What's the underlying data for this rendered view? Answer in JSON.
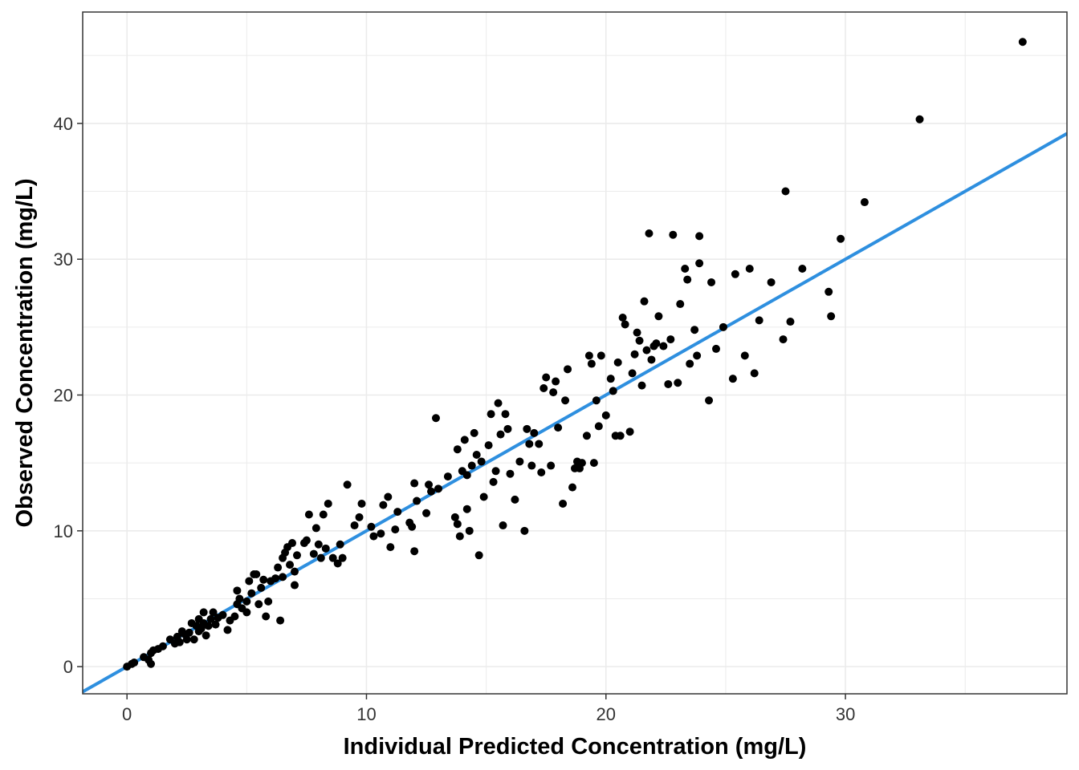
{
  "chart_data": {
    "type": "scatter",
    "title": "",
    "xlabel": "Individual Predicted Concentration (mg/L)",
    "ylabel": "Observed Concentration (mg/L)",
    "xlim": [
      -1.85,
      39.25
    ],
    "ylim": [
      -2.0,
      48.2
    ],
    "x_ticks": [
      0,
      10,
      20,
      30
    ],
    "x_tick_labels": [
      "0",
      "10",
      "20",
      "30"
    ],
    "y_ticks": [
      0,
      10,
      20,
      30,
      40
    ],
    "y_tick_labels": [
      "0",
      "10",
      "20",
      "30",
      "40"
    ],
    "grid": true,
    "legend": "none",
    "colors": {
      "points": "#000000",
      "line": "#2e8fdf",
      "grid": "#ebebeb",
      "panel_border": "#333333"
    },
    "line_of_identity": {
      "slope": 1.0,
      "intercept": 0.0
    },
    "points": [
      [
        0.0,
        0.0
      ],
      [
        0.2,
        0.2
      ],
      [
        0.3,
        0.3
      ],
      [
        0.7,
        0.7
      ],
      [
        0.9,
        0.5
      ],
      [
        1.0,
        1.0
      ],
      [
        1.0,
        0.2
      ],
      [
        1.1,
        1.2
      ],
      [
        1.3,
        1.3
      ],
      [
        1.5,
        1.5
      ],
      [
        1.8,
        2.0
      ],
      [
        2.0,
        1.7
      ],
      [
        2.1,
        2.2
      ],
      [
        2.2,
        1.8
      ],
      [
        2.3,
        2.6
      ],
      [
        2.4,
        2.4
      ],
      [
        2.5,
        2.0
      ],
      [
        2.6,
        2.5
      ],
      [
        2.7,
        3.2
      ],
      [
        2.8,
        2.0
      ],
      [
        2.9,
        3.0
      ],
      [
        3.0,
        3.5
      ],
      [
        3.0,
        2.6
      ],
      [
        3.1,
        2.8
      ],
      [
        3.2,
        4.0
      ],
      [
        3.2,
        3.2
      ],
      [
        3.3,
        2.3
      ],
      [
        3.4,
        3.0
      ],
      [
        3.5,
        3.5
      ],
      [
        3.6,
        4.0
      ],
      [
        3.7,
        3.1
      ],
      [
        3.8,
        3.6
      ],
      [
        4.0,
        3.8
      ],
      [
        4.2,
        2.7
      ],
      [
        4.3,
        3.4
      ],
      [
        4.5,
        3.7
      ],
      [
        4.6,
        4.6
      ],
      [
        4.6,
        5.6
      ],
      [
        4.7,
        5.0
      ],
      [
        4.8,
        4.3
      ],
      [
        5.0,
        4.8
      ],
      [
        5.0,
        4.0
      ],
      [
        5.1,
        6.3
      ],
      [
        5.2,
        5.4
      ],
      [
        5.3,
        6.8
      ],
      [
        5.4,
        6.8
      ],
      [
        5.5,
        4.6
      ],
      [
        5.6,
        5.8
      ],
      [
        5.7,
        6.4
      ],
      [
        5.8,
        3.7
      ],
      [
        5.9,
        4.8
      ],
      [
        6.0,
        6.3
      ],
      [
        6.2,
        6.5
      ],
      [
        6.3,
        7.3
      ],
      [
        6.4,
        3.4
      ],
      [
        6.5,
        6.6
      ],
      [
        6.5,
        8.0
      ],
      [
        6.6,
        8.4
      ],
      [
        6.7,
        8.8
      ],
      [
        6.8,
        7.5
      ],
      [
        6.9,
        9.1
      ],
      [
        7.0,
        6.0
      ],
      [
        7.0,
        7.0
      ],
      [
        7.1,
        8.2
      ],
      [
        7.4,
        9.1
      ],
      [
        7.5,
        9.3
      ],
      [
        7.6,
        11.2
      ],
      [
        7.8,
        8.3
      ],
      [
        7.9,
        10.2
      ],
      [
        8.0,
        9.0
      ],
      [
        8.1,
        8.0
      ],
      [
        8.2,
        11.2
      ],
      [
        8.3,
        8.7
      ],
      [
        8.4,
        12.0
      ],
      [
        8.6,
        8.0
      ],
      [
        8.8,
        7.6
      ],
      [
        8.9,
        9.0
      ],
      [
        9.0,
        8.0
      ],
      [
        9.2,
        13.4
      ],
      [
        9.5,
        10.4
      ],
      [
        9.7,
        11.0
      ],
      [
        9.8,
        12.0
      ],
      [
        10.2,
        10.3
      ],
      [
        10.3,
        9.6
      ],
      [
        10.6,
        9.8
      ],
      [
        10.7,
        11.9
      ],
      [
        10.9,
        12.5
      ],
      [
        11.0,
        8.8
      ],
      [
        11.2,
        10.1
      ],
      [
        11.3,
        11.4
      ],
      [
        11.8,
        10.6
      ],
      [
        11.9,
        10.3
      ],
      [
        12.0,
        8.5
      ],
      [
        12.0,
        13.5
      ],
      [
        12.1,
        12.2
      ],
      [
        12.5,
        11.3
      ],
      [
        12.6,
        13.4
      ],
      [
        12.7,
        12.9
      ],
      [
        12.9,
        18.3
      ],
      [
        13.0,
        13.1
      ],
      [
        13.4,
        14.0
      ],
      [
        13.7,
        11.0
      ],
      [
        13.8,
        16.0
      ],
      [
        13.8,
        10.5
      ],
      [
        13.9,
        9.6
      ],
      [
        14.0,
        14.4
      ],
      [
        14.1,
        16.7
      ],
      [
        14.2,
        11.6
      ],
      [
        14.2,
        14.1
      ],
      [
        14.3,
        10.0
      ],
      [
        14.4,
        14.8
      ],
      [
        14.5,
        17.2
      ],
      [
        14.6,
        15.6
      ],
      [
        14.7,
        8.2
      ],
      [
        14.8,
        15.1
      ],
      [
        14.9,
        12.5
      ],
      [
        15.1,
        16.3
      ],
      [
        15.2,
        18.6
      ],
      [
        15.3,
        13.6
      ],
      [
        15.4,
        14.4
      ],
      [
        15.5,
        19.4
      ],
      [
        15.6,
        17.1
      ],
      [
        15.7,
        10.4
      ],
      [
        15.8,
        18.6
      ],
      [
        15.9,
        17.5
      ],
      [
        16.0,
        14.2
      ],
      [
        16.2,
        12.3
      ],
      [
        16.4,
        15.1
      ],
      [
        16.6,
        10.0
      ],
      [
        16.7,
        17.5
      ],
      [
        16.8,
        16.4
      ],
      [
        16.9,
        14.8
      ],
      [
        17.0,
        17.2
      ],
      [
        17.2,
        16.4
      ],
      [
        17.3,
        14.3
      ],
      [
        17.4,
        20.5
      ],
      [
        17.5,
        21.3
      ],
      [
        17.7,
        14.8
      ],
      [
        17.8,
        20.2
      ],
      [
        17.9,
        21.0
      ],
      [
        18.0,
        17.6
      ],
      [
        18.2,
        12.0
      ],
      [
        18.3,
        19.6
      ],
      [
        18.4,
        21.9
      ],
      [
        18.6,
        13.2
      ],
      [
        18.7,
        14.6
      ],
      [
        18.8,
        15.1
      ],
      [
        18.9,
        14.6
      ],
      [
        19.0,
        15.0
      ],
      [
        19.2,
        17.0
      ],
      [
        19.3,
        22.9
      ],
      [
        19.4,
        22.3
      ],
      [
        19.5,
        15.0
      ],
      [
        19.6,
        19.6
      ],
      [
        19.7,
        17.7
      ],
      [
        19.8,
        22.9
      ],
      [
        20.0,
        18.5
      ],
      [
        20.2,
        21.2
      ],
      [
        20.3,
        20.3
      ],
      [
        20.4,
        17.0
      ],
      [
        20.5,
        22.4
      ],
      [
        20.6,
        17.0
      ],
      [
        20.7,
        25.7
      ],
      [
        20.8,
        25.2
      ],
      [
        21.0,
        17.3
      ],
      [
        21.1,
        21.6
      ],
      [
        21.2,
        23.0
      ],
      [
        21.3,
        24.6
      ],
      [
        21.4,
        24.0
      ],
      [
        21.5,
        20.7
      ],
      [
        21.6,
        26.9
      ],
      [
        21.7,
        23.3
      ],
      [
        21.8,
        31.9
      ],
      [
        21.9,
        22.6
      ],
      [
        22.0,
        23.6
      ],
      [
        22.1,
        23.8
      ],
      [
        22.2,
        25.8
      ],
      [
        22.4,
        23.6
      ],
      [
        22.6,
        20.8
      ],
      [
        22.7,
        24.1
      ],
      [
        22.8,
        31.8
      ],
      [
        23.0,
        20.9
      ],
      [
        23.1,
        26.7
      ],
      [
        23.3,
        29.3
      ],
      [
        23.4,
        28.5
      ],
      [
        23.5,
        22.3
      ],
      [
        23.7,
        24.8
      ],
      [
        23.8,
        22.9
      ],
      [
        23.9,
        29.7
      ],
      [
        23.9,
        31.7
      ],
      [
        24.3,
        19.6
      ],
      [
        24.4,
        28.3
      ],
      [
        24.6,
        23.4
      ],
      [
        24.9,
        25.0
      ],
      [
        25.3,
        21.2
      ],
      [
        25.4,
        28.9
      ],
      [
        25.8,
        22.9
      ],
      [
        26.0,
        29.3
      ],
      [
        26.2,
        21.6
      ],
      [
        26.4,
        25.5
      ],
      [
        26.9,
        28.3
      ],
      [
        27.4,
        24.1
      ],
      [
        27.5,
        35.0
      ],
      [
        27.7,
        25.4
      ],
      [
        28.2,
        29.3
      ],
      [
        29.3,
        27.6
      ],
      [
        29.4,
        25.8
      ],
      [
        29.8,
        31.5
      ],
      [
        30.8,
        34.2
      ],
      [
        33.1,
        40.3
      ],
      [
        37.4,
        46.0
      ]
    ]
  }
}
